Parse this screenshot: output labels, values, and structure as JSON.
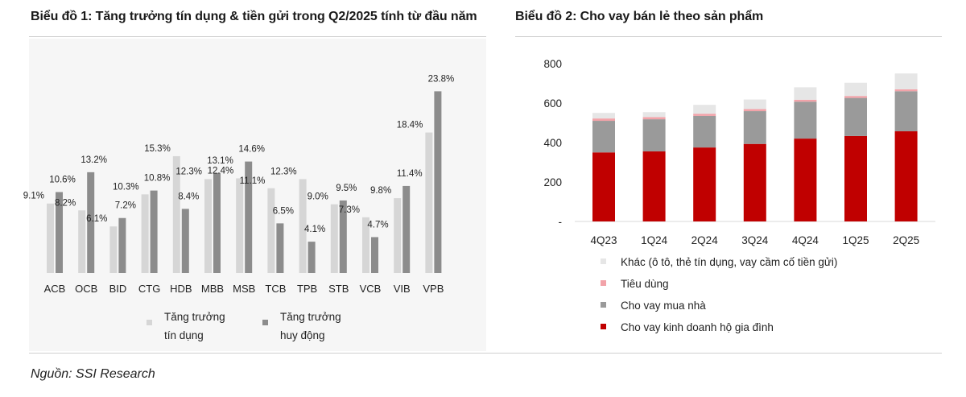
{
  "titles": {
    "chart1": "Biểu đồ 1: Tăng trưởng tín dụng & tiền gửi trong Q2/2025 tính từ đầu năm",
    "chart2": "Biểu đồ 2: Cho vay bán lẻ theo sản phẩm"
  },
  "source": "Nguồn: SSI Research",
  "colors": {
    "credit": "#d6d6d6",
    "deposit": "#8c8c8c",
    "khac": "#e6e6e6",
    "tieu_dung": "#f2a3a9",
    "mua_nha": "#9a9a9a",
    "kinh_doanh": "#c00000"
  },
  "chart_data": [
    {
      "type": "bar",
      "title": "Biểu đồ 1: Tăng trưởng tín dụng & tiền gửi trong Q2/2025 tính từ đầu năm",
      "categories": [
        "ACB",
        "OCB",
        "BID",
        "CTG",
        "HDB",
        "MBB",
        "MSB",
        "TCB",
        "TPB",
        "STB",
        "VCB",
        "VIB",
        "VPB"
      ],
      "series": [
        {
          "name_lines": [
            "Tăng trưởng",
            "tín dụng"
          ],
          "values": [
            9.1,
            8.2,
            6.1,
            10.3,
            15.3,
            12.3,
            12.4,
            11.1,
            12.3,
            9.0,
            7.3,
            9.8,
            18.4
          ],
          "labels": [
            "9.1%",
            "8.2%",
            "6.1%",
            "10.3%",
            "15.3%",
            "12.3%",
            "12.4%",
            "11.1%",
            "12.3%",
            "9.0%",
            "7.3%",
            "9.8%",
            "18.4%"
          ]
        },
        {
          "name_lines": [
            "Tăng trưởng",
            "huy động"
          ],
          "values": [
            10.6,
            13.2,
            7.2,
            10.8,
            8.4,
            13.1,
            14.6,
            6.5,
            4.1,
            9.5,
            4.7,
            11.4,
            23.8
          ],
          "labels": [
            "10.6%",
            "13.2%",
            "7.2%",
            "10.8%",
            "8.4%",
            "13.1%",
            "14.6%",
            "6.5%",
            "4.1%",
            "9.5%",
            "4.7%",
            "11.4%",
            "23.8%"
          ]
        }
      ],
      "ylim": [
        0,
        25
      ],
      "legend_position": "bottom",
      "grid": false
    },
    {
      "type": "bar",
      "stacked": true,
      "title": "Biểu đồ 2: Cho vay bán lẻ theo sản phẩm",
      "categories": [
        "4Q23",
        "1Q24",
        "2Q24",
        "3Q24",
        "4Q24",
        "1Q25",
        "2Q25"
      ],
      "series": [
        {
          "name": "Cho vay kinh doanh hộ gia đình",
          "values": [
            350,
            355,
            375,
            393,
            420,
            433,
            457
          ]
        },
        {
          "name": "Cho vay mua nhà",
          "values": [
            160,
            163,
            160,
            166,
            187,
            193,
            203
          ]
        },
        {
          "name": "Tiêu dùng",
          "values": [
            12,
            11,
            11,
            11,
            10,
            10,
            10
          ]
        },
        {
          "name": "Khác (ô tô, thẻ tín dụng, vay cầm cố tiền gửi)",
          "values": [
            28,
            25,
            45,
            48,
            63,
            67,
            80
          ]
        }
      ],
      "legend_order": [
        3,
        2,
        1,
        0
      ],
      "yticks": [
        "800",
        "600",
        "400",
        "200",
        "-"
      ],
      "ytick_values": [
        800,
        600,
        400,
        200,
        0
      ],
      "ylim": [
        0,
        800
      ],
      "legend_position": "bottom",
      "grid": false
    }
  ]
}
